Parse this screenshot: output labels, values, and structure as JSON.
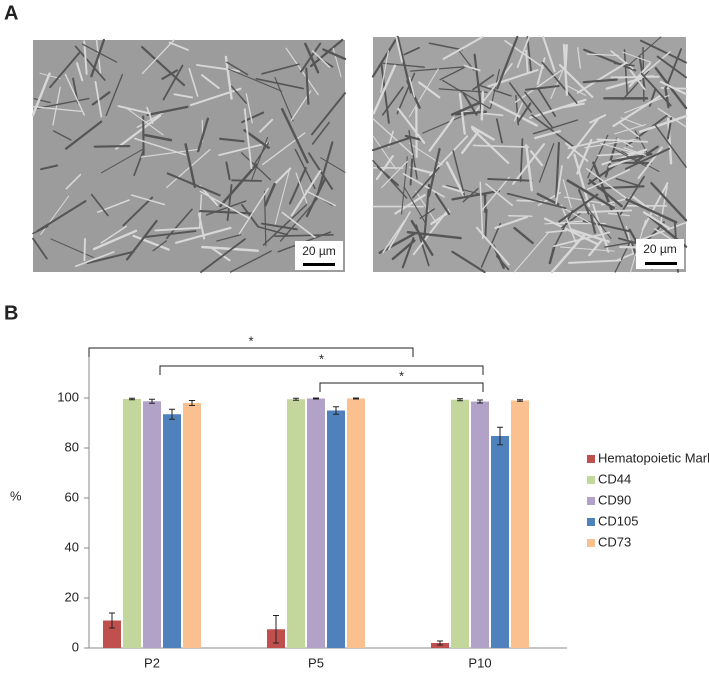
{
  "panels": {
    "a_label": "A",
    "b_label": "B",
    "scale_bar_labels": [
      "20 µm",
      "20 µm"
    ]
  },
  "chart_data": {
    "type": "bar",
    "ylabel": "%",
    "categories": [
      "P2",
      "P5",
      "P10"
    ],
    "series": [
      {
        "name": "Hematopoietic Markers",
        "color": "#c0504d",
        "values": [
          11,
          7.5,
          2
        ],
        "errors": [
          3,
          5.5,
          0.8
        ]
      },
      {
        "name": "CD44",
        "color": "#c3d69b",
        "values": [
          99.6,
          99.5,
          99.3
        ],
        "errors": [
          0.3,
          0.4,
          0.4
        ]
      },
      {
        "name": "CD90",
        "color": "#b3a2c7",
        "values": [
          98.7,
          99.8,
          98.6
        ],
        "errors": [
          0.8,
          0.2,
          0.6
        ]
      },
      {
        "name": "CD105",
        "color": "#4f81bd",
        "values": [
          93.5,
          95,
          84.8
        ],
        "errors": [
          2,
          1.5,
          3.5
        ]
      },
      {
        "name": "CD73",
        "color": "#fac090",
        "values": [
          98,
          99.8,
          99
        ],
        "errors": [
          1,
          0.2,
          0.3
        ]
      }
    ],
    "ylim": [
      0,
      120
    ],
    "yticks": [
      0,
      20,
      40,
      60,
      80,
      100
    ],
    "annotations": [
      "*",
      "*",
      "*"
    ],
    "legend": "right"
  }
}
